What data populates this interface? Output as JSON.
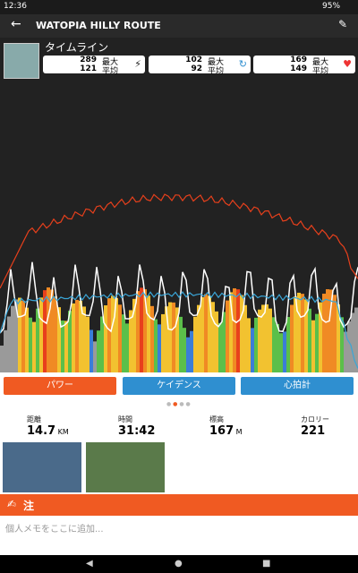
{
  "status_bar": {
    "time": "12:36",
    "battery": "95%"
  },
  "header": {
    "title": "WATOPIA HILLY ROUTE"
  },
  "timeline": {
    "title": "タイムライン",
    "stats": [
      {
        "max": 289,
        "max_label": "最大",
        "avg": 121,
        "avg_label": "平均"
      },
      {
        "max": 102,
        "max_label": "最大",
        "avg": 92,
        "avg_label": "平均"
      },
      {
        "max": 169,
        "max_label": "最大",
        "avg": 149,
        "avg_label": "平均"
      }
    ]
  },
  "tabs": [
    "パワー",
    "ケイデンス",
    "心拍計"
  ],
  "summary": [
    {
      "label": "距離",
      "value": 14.7,
      "unit": "KM"
    },
    {
      "label": "時間",
      "value": "31:42"
    },
    {
      "label": "標高",
      "value": 167,
      "unit": "M"
    },
    {
      "label": "カロリー",
      "value": 221
    }
  ],
  "notes": {
    "title": "注",
    "placeholder": "個人メモをここに追加..."
  }
}
